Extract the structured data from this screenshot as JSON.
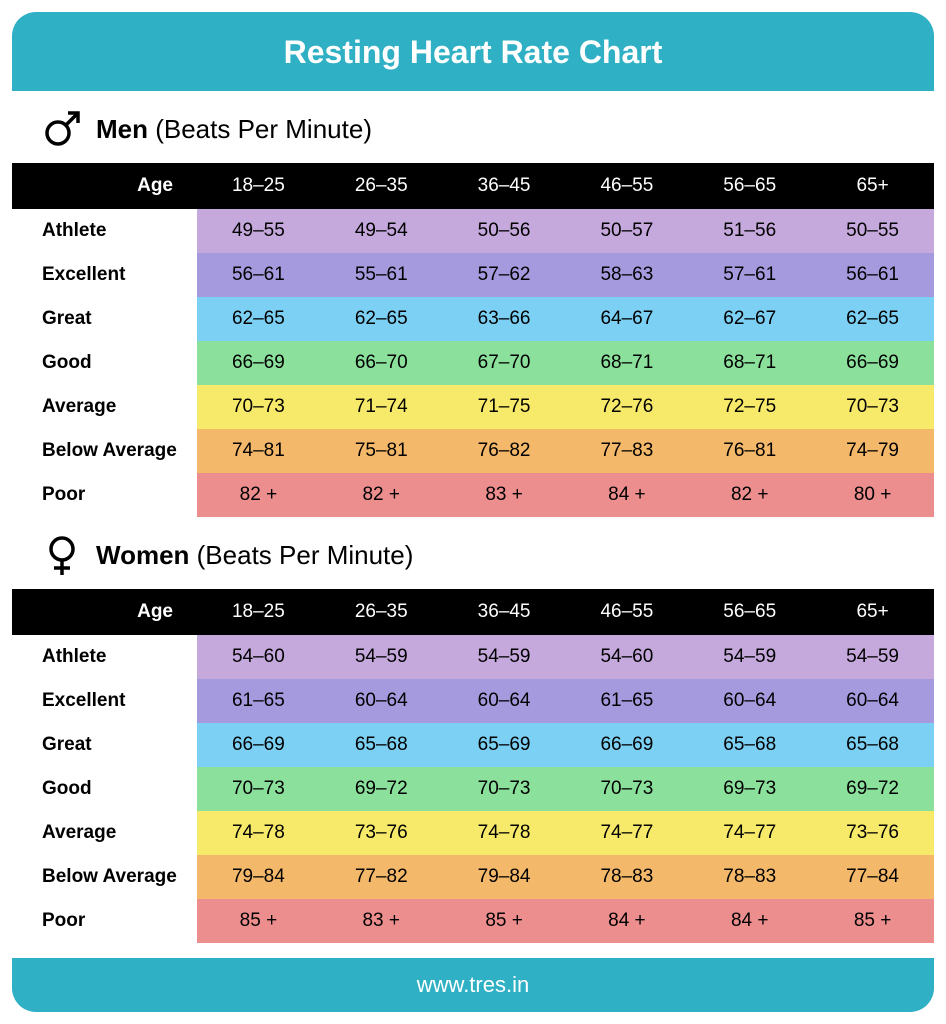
{
  "title": "Resting Heart Rate Chart",
  "footer": "www.tres.in",
  "ages_label": "Age",
  "ages": [
    "18–25",
    "26–35",
    "36–45",
    "46–55",
    "56–65",
    "65+"
  ],
  "row_labels": [
    "Athlete",
    "Excellent",
    "Great",
    "Good",
    "Average",
    "Below Average",
    "Poor"
  ],
  "row_colors": [
    "#c5a8dc",
    "#a59ade",
    "#7cd0f4",
    "#8be09c",
    "#f7ea6a",
    "#f4b86a",
    "#ec8e8e"
  ],
  "colors": {
    "card_bg": "#2fb0c4",
    "header_bg": "#000000",
    "header_text": "#ffffff",
    "text": "#000000",
    "label_bg": "#ffffff"
  },
  "sections": [
    {
      "icon": "male",
      "label_bold": "Men",
      "label_rest": "(Beats Per Minute)",
      "rows": [
        [
          "49–55",
          "49–54",
          "50–56",
          "50–57",
          "51–56",
          "50–55"
        ],
        [
          "56–61",
          "55–61",
          "57–62",
          "58–63",
          "57–61",
          "56–61"
        ],
        [
          "62–65",
          "62–65",
          "63–66",
          "64–67",
          "62–67",
          "62–65"
        ],
        [
          "66–69",
          "66–70",
          "67–70",
          "68–71",
          "68–71",
          "66–69"
        ],
        [
          "70–73",
          "71–74",
          "71–75",
          "72–76",
          "72–75",
          "70–73"
        ],
        [
          "74–81",
          "75–81",
          "76–82",
          "77–83",
          "76–81",
          "74–79"
        ],
        [
          "82 +",
          "82 +",
          "83 +",
          "84 +",
          "82 +",
          "80 +"
        ]
      ]
    },
    {
      "icon": "female",
      "label_bold": "Women",
      "label_rest": "(Beats Per Minute)",
      "rows": [
        [
          "54–60",
          "54–59",
          "54–59",
          "54–60",
          "54–59",
          "54–59"
        ],
        [
          "61–65",
          "60–64",
          "60–64",
          "61–65",
          "60–64",
          "60–64"
        ],
        [
          "66–69",
          "65–68",
          "65–69",
          "66–69",
          "65–68",
          "65–68"
        ],
        [
          "70–73",
          "69–72",
          "70–73",
          "70–73",
          "69–73",
          "69–72"
        ],
        [
          "74–78",
          "73–76",
          "74–78",
          "74–77",
          "74–77",
          "73–76"
        ],
        [
          "79–84",
          "77–82",
          "79–84",
          "78–83",
          "78–83",
          "77–84"
        ],
        [
          "85 +",
          "83 +",
          "85 +",
          "84 +",
          "84 +",
          "85 +"
        ]
      ]
    }
  ]
}
